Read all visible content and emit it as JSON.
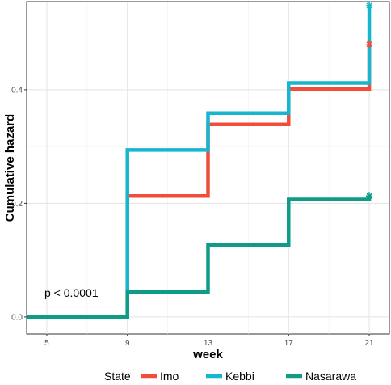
{
  "chart_data": {
    "type": "line",
    "step": true,
    "xlabel": "week",
    "ylabel": "Cumulative hazard",
    "xlim": [
      4,
      22
    ],
    "ylim": [
      -0.03,
      0.555
    ],
    "x_ticks": [
      5,
      9,
      13,
      17,
      21
    ],
    "x_tick_labels": [
      "5",
      "9",
      "13",
      "17",
      "21"
    ],
    "y_ticks": [
      0.0,
      0.2,
      0.4
    ],
    "y_tick_labels": [
      "0.0",
      "0.2",
      "0.4"
    ],
    "grid": true,
    "legend": {
      "title": "State",
      "position": "bottom",
      "entries": [
        "Imo",
        "Kebbi",
        "Nasarawa"
      ]
    },
    "annotation": "p < 0.0001",
    "series": [
      {
        "name": "Imo",
        "color": "#f04e3a",
        "x": [
          4,
          9,
          13,
          17,
          21
        ],
        "y": [
          0.0,
          0.213,
          0.339,
          0.401,
          0.48
        ],
        "censor_marks": [
          {
            "x": 21,
            "y": 0.48
          }
        ]
      },
      {
        "name": "Kebbi",
        "color": "#17b6cf",
        "x": [
          4,
          9,
          13,
          17,
          21
        ],
        "y": [
          0.0,
          0.294,
          0.359,
          0.412,
          0.548
        ],
        "censor_marks": [
          {
            "x": 21,
            "y": 0.548
          }
        ]
      },
      {
        "name": "Nasarawa",
        "color": "#0e9c86",
        "x": [
          4,
          9,
          13,
          17,
          21
        ],
        "y": [
          0.0,
          0.044,
          0.127,
          0.207,
          0.213
        ],
        "censor_marks": [
          {
            "x": 21,
            "y": 0.213
          }
        ]
      }
    ]
  }
}
